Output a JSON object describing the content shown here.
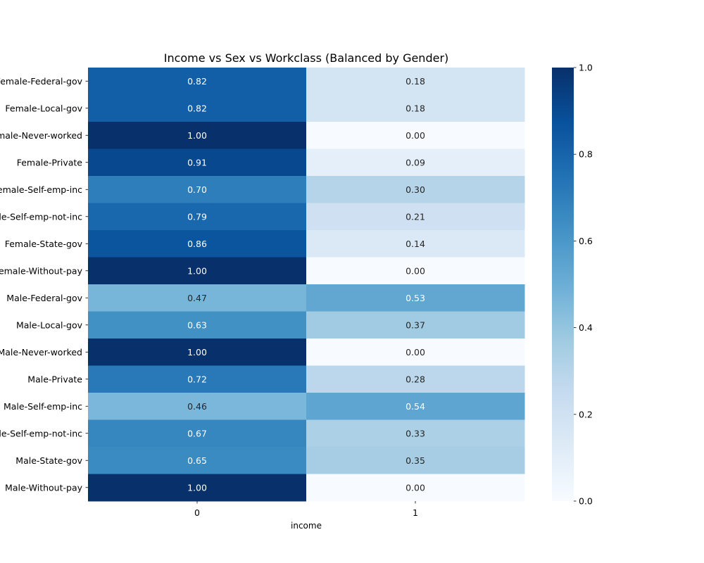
{
  "chart_data": {
    "type": "heatmap",
    "title": "Income vs Sex vs Workclass (Balanced by Gender)",
    "xlabel": "income",
    "ylabel": "",
    "x_categories": [
      "0",
      "1"
    ],
    "y_categories": [
      "Female-Federal-gov",
      "Female-Local-gov",
      "Female-Never-worked",
      "Female-Private",
      "Female-Self-emp-inc",
      "Female-Self-emp-not-inc",
      "Female-State-gov",
      "Female-Without-pay",
      "Male-Federal-gov",
      "Male-Local-gov",
      "Male-Never-worked",
      "Male-Private",
      "Male-Self-emp-inc",
      "Male-Self-emp-not-inc",
      "Male-State-gov",
      "Male-Without-pay"
    ],
    "values": [
      [
        0.82,
        0.18
      ],
      [
        0.82,
        0.18
      ],
      [
        1.0,
        0.0
      ],
      [
        0.91,
        0.09
      ],
      [
        0.7,
        0.3
      ],
      [
        0.79,
        0.21
      ],
      [
        0.86,
        0.14
      ],
      [
        1.0,
        0.0
      ],
      [
        0.47,
        0.53
      ],
      [
        0.63,
        0.37
      ],
      [
        1.0,
        0.0
      ],
      [
        0.72,
        0.28
      ],
      [
        0.46,
        0.54
      ],
      [
        0.67,
        0.33
      ],
      [
        0.65,
        0.35
      ],
      [
        1.0,
        0.0
      ]
    ],
    "value_format": "0.00",
    "colormap": "Blues",
    "colorbar": {
      "range": [
        0.0,
        1.0
      ],
      "ticks": [
        "0.0",
        "0.2",
        "0.4",
        "0.6",
        "0.8",
        "1.0"
      ]
    }
  }
}
